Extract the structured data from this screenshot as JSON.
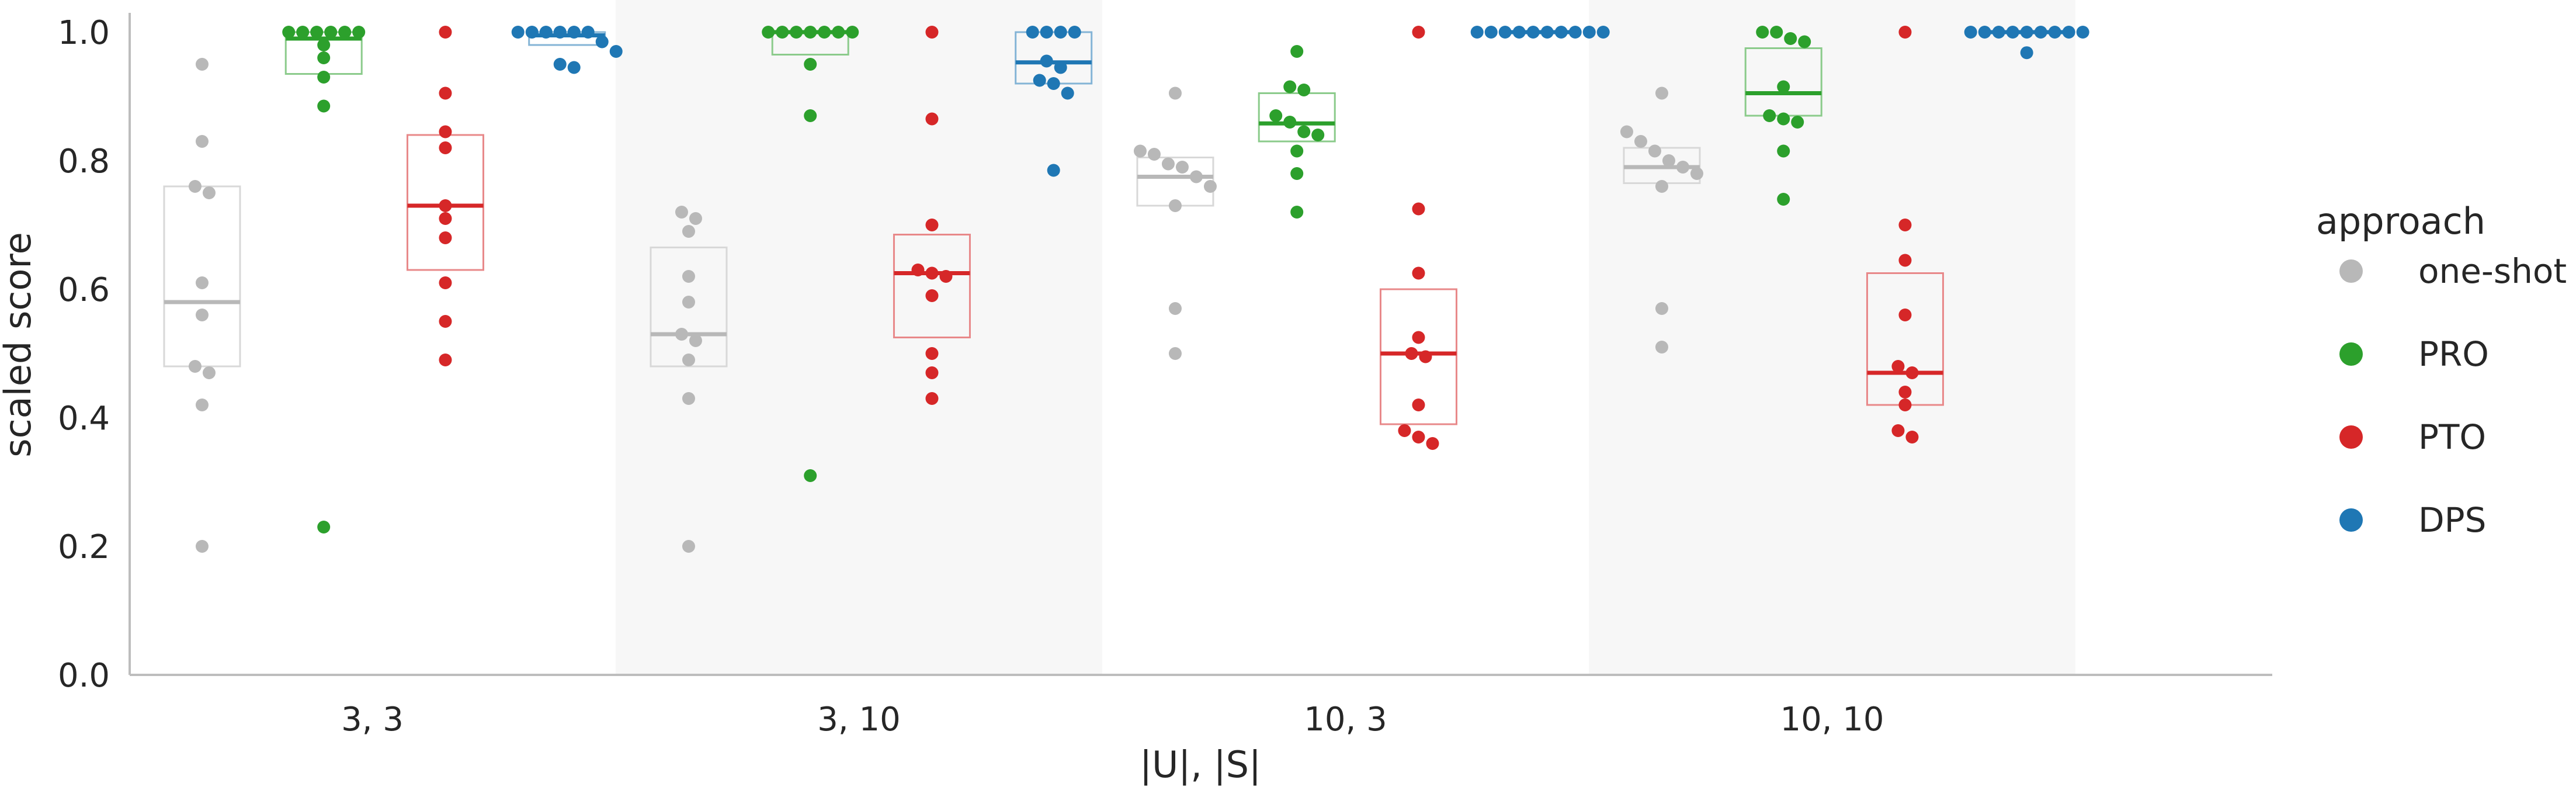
{
  "chart_data": {
    "type": "box-swarm",
    "title": "",
    "xlabel": "|U|, |S|",
    "ylabel": "scaled score",
    "ylim": [
      0,
      1.0
    ],
    "yticks": [
      "0.0",
      "0.2",
      "0.4",
      "0.6",
      "0.8",
      "1.0"
    ],
    "grid": false,
    "shaded_alternate_groups": true,
    "legend": {
      "title": "approach",
      "position": "right",
      "entries": [
        "one-shot",
        "PRO",
        "PTO",
        "DPS"
      ]
    },
    "groups": [
      "3, 3",
      "3, 10",
      "10, 3",
      "10, 10"
    ],
    "series": [
      {
        "name": "one-shot",
        "color": "#b8b8b8",
        "boxes": [
          {
            "q1": 0.48,
            "median": 0.58,
            "q3": 0.76
          },
          {
            "q1": 0.48,
            "median": 0.53,
            "q3": 0.665
          },
          {
            "q1": 0.73,
            "median": 0.775,
            "q3": 0.805
          },
          {
            "q1": 0.765,
            "median": 0.79,
            "q3": 0.82
          }
        ],
        "points": [
          [
            0.95,
            0.83,
            0.76,
            0.75,
            0.61,
            0.56,
            0.48,
            0.47,
            0.42,
            0.2
          ],
          [
            0.72,
            0.71,
            0.69,
            0.62,
            0.58,
            0.53,
            0.52,
            0.49,
            0.43,
            0.2
          ],
          [
            0.905,
            0.815,
            0.81,
            0.795,
            0.79,
            0.775,
            0.76,
            0.73,
            0.57,
            0.5
          ],
          [
            0.905,
            0.845,
            0.83,
            0.815,
            0.8,
            0.79,
            0.78,
            0.76,
            0.57,
            0.51
          ]
        ]
      },
      {
        "name": "PRO",
        "color": "#2ca02c",
        "boxes": [
          {
            "q1": 0.935,
            "median": 0.99,
            "q3": 1.0
          },
          {
            "q1": 0.965,
            "median": 1.0,
            "q3": 1.0
          },
          {
            "q1": 0.83,
            "median": 0.858,
            "q3": 0.905
          },
          {
            "q1": 0.87,
            "median": 0.905,
            "q3": 0.975
          }
        ],
        "points": [
          [
            1.0,
            1.0,
            1.0,
            1.0,
            1.0,
            1.0,
            0.98,
            0.96,
            0.93,
            0.885,
            0.23
          ],
          [
            1.0,
            1.0,
            1.0,
            1.0,
            1.0,
            1.0,
            1.0,
            0.95,
            0.87,
            0.31
          ],
          [
            0.97,
            0.915,
            0.91,
            0.87,
            0.86,
            0.845,
            0.84,
            0.815,
            0.78,
            0.72
          ],
          [
            1.0,
            1.0,
            0.99,
            0.985,
            0.915,
            0.87,
            0.865,
            0.86,
            0.815,
            0.74
          ]
        ]
      },
      {
        "name": "PTO",
        "color": "#d62728",
        "boxes": [
          {
            "q1": 0.63,
            "median": 0.73,
            "q3": 0.84
          },
          {
            "q1": 0.525,
            "median": 0.625,
            "q3": 0.685
          },
          {
            "q1": 0.39,
            "median": 0.5,
            "q3": 0.6
          },
          {
            "q1": 0.42,
            "median": 0.47,
            "q3": 0.625
          }
        ],
        "points": [
          [
            1.0,
            0.905,
            0.845,
            0.82,
            0.73,
            0.71,
            0.68,
            0.61,
            0.55,
            0.49
          ],
          [
            1.0,
            0.865,
            0.7,
            0.63,
            0.625,
            0.62,
            0.59,
            0.5,
            0.47,
            0.43
          ],
          [
            1.0,
            0.725,
            0.625,
            0.525,
            0.5,
            0.495,
            0.42,
            0.38,
            0.37,
            0.36
          ],
          [
            1.0,
            0.7,
            0.645,
            0.56,
            0.48,
            0.47,
            0.44,
            0.42,
            0.38,
            0.37
          ]
        ]
      },
      {
        "name": "DPS",
        "color": "#1f77b4",
        "boxes": [
          {
            "q1": 0.98,
            "median": 0.995,
            "q3": 1.0
          },
          {
            "q1": 0.92,
            "median": 0.953,
            "q3": 1.0
          },
          {
            "q1": 1.0,
            "median": 1.0,
            "q3": 1.0
          },
          {
            "q1": 1.0,
            "median": 1.0,
            "q3": 1.0
          }
        ],
        "points": [
          [
            1.0,
            1.0,
            1.0,
            1.0,
            1.0,
            1.0,
            0.985,
            0.97,
            0.95,
            0.945
          ],
          [
            1.0,
            1.0,
            1.0,
            1.0,
            0.955,
            0.945,
            0.925,
            0.92,
            0.905,
            0.785
          ],
          [
            1.0,
            1.0,
            1.0,
            1.0,
            1.0,
            1.0,
            1.0,
            1.0,
            1.0,
            1.0
          ],
          [
            1.0,
            1.0,
            1.0,
            1.0,
            1.0,
            1.0,
            1.0,
            1.0,
            1.0,
            0.968
          ]
        ]
      }
    ]
  }
}
